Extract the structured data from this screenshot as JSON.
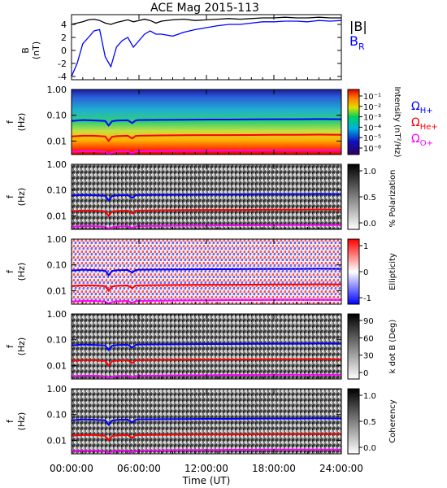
{
  "title": "ACE Mag 2015-113",
  "time_axis": {
    "label": "Time (UT)",
    "ticks": [
      "00:00:00",
      "06:00:00",
      "12:00:00",
      "18:00:00",
      "24:00:00"
    ],
    "range_hours": [
      0,
      24
    ]
  },
  "colors": {
    "B_total": "#000000",
    "B_R": "#0000ff",
    "omega_H": "#0000ff",
    "omega_He": "#ff0000",
    "omega_O": "#ff00ff"
  },
  "panels": [
    {
      "id": "field",
      "ylabel": "B",
      "yunit": "(nT)",
      "ytick_labels": [
        "4",
        "2",
        "0",
        "-2",
        "-4"
      ],
      "legend_total": "|B|",
      "legend_br_main": "B",
      "legend_br_sub": "R"
    },
    {
      "id": "intensity",
      "ylabel": "f",
      "yunit": "(Hz)",
      "ytick_labels": [
        "1.00",
        "0.10",
        "0.01"
      ],
      "colorbar_label": "Intensity (nT²/Hz)",
      "colorbar_tick_labels": [
        "10⁻¹",
        "10⁻²",
        "10⁻³",
        "10⁻⁴",
        "10⁻⁵",
        "10⁻⁶"
      ],
      "legend": [
        {
          "symbol": "Ω",
          "sub": "H+"
        },
        {
          "symbol": "Ω",
          "sub": "He+"
        },
        {
          "symbol": "Ω",
          "sub": "O+"
        }
      ]
    },
    {
      "id": "polarization",
      "ylabel": "f",
      "yunit": "(Hz)",
      "ytick_labels": [
        "1.00",
        "0.10",
        "0.01"
      ],
      "colorbar_label": "% Polarization",
      "colorbar_tick_labels": [
        "1.0",
        "0.5",
        "0.0"
      ]
    },
    {
      "id": "ellipticity",
      "ylabel": "f",
      "yunit": "(Hz)",
      "ytick_labels": [
        "1.00",
        "0.10",
        "0.01"
      ],
      "colorbar_label": "Ellipticity",
      "colorbar_tick_labels": [
        "1",
        "0",
        "-1"
      ]
    },
    {
      "id": "kdotb",
      "ylabel": "f",
      "yunit": "(Hz)",
      "ytick_labels": [
        "1.00",
        "0.10",
        "0.01"
      ],
      "colorbar_label": "k dot B (Deg)",
      "colorbar_tick_labels": [
        "90",
        "60",
        "30",
        "0"
      ]
    },
    {
      "id": "coherency",
      "ylabel": "f",
      "yunit": "(Hz)",
      "ytick_labels": [
        "1.00",
        "0.10",
        "0.01"
      ],
      "colorbar_label": "Coherency",
      "colorbar_tick_labels": [
        "1.0",
        "0.5",
        "0.0"
      ]
    }
  ],
  "chart_data": [
    {
      "type": "line",
      "x_unit": "hours UT",
      "ylim": [
        -4.5,
        5.5
      ],
      "series": [
        {
          "name": "|B|",
          "x": [
            0,
            0.5,
            1,
            1.5,
            2,
            2.5,
            3,
            3.5,
            4,
            4.5,
            5,
            5.5,
            6,
            6.5,
            7,
            7.5,
            8,
            9,
            10,
            11,
            12,
            13,
            14,
            15,
            16,
            17,
            18,
            19,
            20,
            21,
            22,
            23,
            24
          ],
          "y": [
            4.0,
            4.2,
            4.4,
            4.7,
            4.8,
            4.6,
            4.2,
            4.0,
            4.3,
            4.5,
            4.7,
            4.4,
            4.6,
            4.8,
            4.6,
            4.2,
            4.5,
            4.7,
            4.8,
            4.6,
            4.7,
            4.8,
            4.9,
            4.8,
            4.9,
            5.0,
            5.0,
            5.1,
            5.0,
            5.0,
            5.1,
            5.0,
            5.0
          ]
        },
        {
          "name": "B_R",
          "x": [
            0,
            0.5,
            1,
            1.5,
            2,
            2.5,
            3,
            3.5,
            4,
            4.5,
            5,
            5.5,
            6,
            6.5,
            7,
            7.5,
            8,
            9,
            10,
            11,
            12,
            13,
            14,
            15,
            16,
            17,
            18,
            19,
            20,
            21,
            22,
            23,
            24
          ],
          "y": [
            -4.0,
            -2.0,
            1.0,
            2.0,
            3.0,
            3.2,
            -1.0,
            -2.5,
            0.5,
            1.5,
            2.0,
            0.5,
            1.5,
            2.5,
            3.0,
            2.5,
            2.5,
            2.2,
            2.8,
            3.2,
            3.5,
            3.8,
            4.0,
            4.0,
            4.2,
            4.4,
            4.4,
            4.5,
            4.5,
            4.4,
            4.6,
            4.5,
            4.6
          ]
        }
      ]
    },
    {
      "type": "heatmap",
      "x_unit": "hours UT",
      "y_scale": "log",
      "ylim_hz": [
        0.003,
        1.0
      ],
      "series": [
        {
          "name": "ΩH+",
          "x": [
            0,
            1,
            2,
            3,
            3.3,
            3.6,
            4,
            5,
            5.4,
            5.7,
            6,
            8,
            10,
            12,
            14,
            16,
            18,
            20,
            22,
            24
          ],
          "y": [
            0.06,
            0.065,
            0.063,
            0.06,
            0.04,
            0.058,
            0.062,
            0.064,
            0.05,
            0.063,
            0.065,
            0.066,
            0.067,
            0.068,
            0.068,
            0.069,
            0.07,
            0.07,
            0.071,
            0.07
          ]
        },
        {
          "name": "ΩHe+",
          "x": [
            0,
            1,
            2,
            3,
            3.3,
            3.6,
            4,
            5,
            5.4,
            5.7,
            6,
            8,
            10,
            12,
            14,
            16,
            18,
            20,
            22,
            24
          ],
          "y": [
            0.015,
            0.016,
            0.016,
            0.015,
            0.01,
            0.0145,
            0.0155,
            0.016,
            0.0125,
            0.0158,
            0.016,
            0.0165,
            0.0168,
            0.017,
            0.017,
            0.0172,
            0.0175,
            0.0175,
            0.0178,
            0.0175
          ]
        },
        {
          "name": "ΩO+",
          "x": [
            0,
            1,
            2,
            3,
            3.3,
            3.6,
            4,
            5,
            5.4,
            5.7,
            6,
            8,
            10,
            12,
            14,
            16,
            18,
            20,
            22,
            24
          ],
          "y": [
            0.0038,
            0.004,
            0.004,
            0.0038,
            0.0032,
            0.0036,
            0.0039,
            0.004,
            0.0034,
            0.0039,
            0.004,
            0.0041,
            0.0042,
            0.0042,
            0.0043,
            0.0043,
            0.0044,
            0.0044,
            0.0044,
            0.0044
          ]
        }
      ]
    }
  ]
}
